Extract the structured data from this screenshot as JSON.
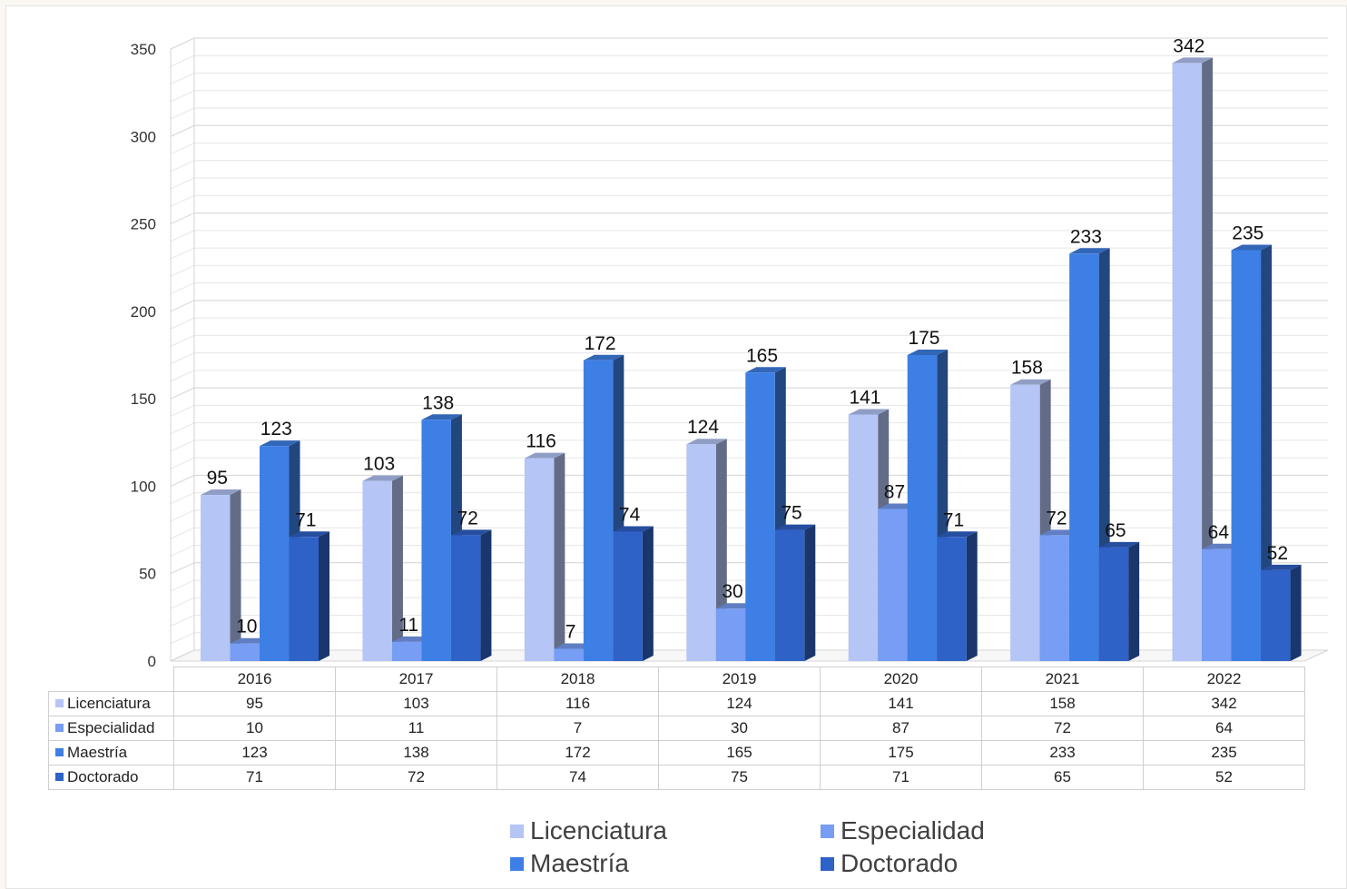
{
  "chart_data": {
    "type": "bar",
    "title": "",
    "xlabel": "",
    "ylabel": "",
    "ylim": [
      0,
      350
    ],
    "yticks": [
      0,
      50,
      100,
      150,
      200,
      250,
      300,
      350
    ],
    "grid": true,
    "legend_position": "bottom",
    "categories": [
      "2016",
      "2017",
      "2018",
      "2019",
      "2020",
      "2021",
      "2022"
    ],
    "series": [
      {
        "name": "Licenciatura",
        "color": "#b4c5f6",
        "values": [
          95,
          103,
          116,
          124,
          141,
          158,
          342
        ]
      },
      {
        "name": "Especialidad",
        "color": "#779df4",
        "values": [
          10,
          11,
          7,
          30,
          87,
          72,
          64
        ]
      },
      {
        "name": "Maestría",
        "color": "#3e7fe5",
        "values": [
          123,
          138,
          172,
          165,
          175,
          233,
          235
        ]
      },
      {
        "name": "Doctorado",
        "color": "#2f62c7",
        "values": [
          71,
          72,
          74,
          75,
          71,
          65,
          52
        ]
      }
    ]
  }
}
